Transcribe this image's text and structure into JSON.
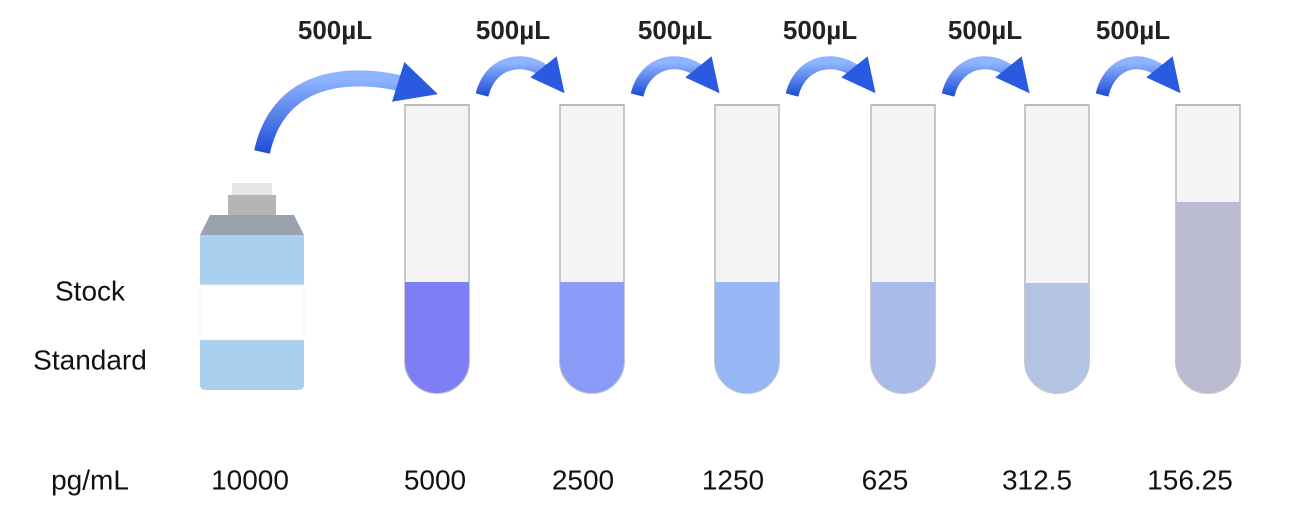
{
  "transfers": [
    "500µL",
    "500µL",
    "500µL",
    "500µL",
    "500µL",
    "500µL"
  ],
  "stock_label": [
    "Stock",
    "Standard"
  ],
  "unit": "pg/mL",
  "concentrations": [
    "10000",
    "5000",
    "2500",
    "1250",
    "625",
    "312.5",
    "156.25"
  ]
}
